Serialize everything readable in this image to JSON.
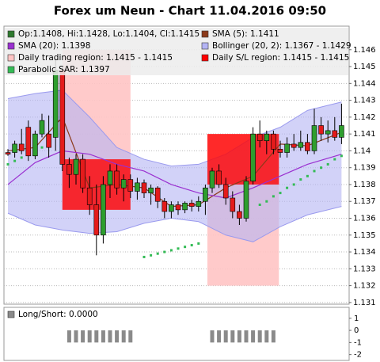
{
  "chart_data": [
    {
      "type": "candlestick",
      "title": "Forex um Neun - Chart 11.04.2016 09:50",
      "ylim": [
        1.1309,
        1.1474
      ],
      "yticks": [
        1.131,
        1.132,
        1.133,
        1.134,
        1.135,
        1.136,
        1.137,
        1.138,
        1.139,
        1.14,
        1.141,
        1.142,
        1.143,
        1.144,
        1.145,
        1.146
      ],
      "grid": true,
      "candles": {
        "name": "Op:1.1408, Hi:1.1428, Lo:1.1404, Cl:1.1415",
        "color": "#2f7a2f",
        "up_color": "#2e9e2e",
        "down_color": "#e41b1b",
        "open": [
          1.1399,
          1.1399,
          1.1404,
          1.1414,
          1.1397,
          1.141,
          1.141,
          1.1408,
          1.1448,
          1.1392,
          1.1386,
          1.1395,
          1.1378,
          1.1368,
          1.135,
          1.138,
          1.1388,
          1.1378,
          1.1383,
          1.1376,
          1.1381,
          1.1375,
          1.1378,
          1.137,
          1.1364,
          1.1368,
          1.1365,
          1.1369,
          1.1367,
          1.137,
          1.1378,
          1.1388,
          1.138,
          1.1372,
          1.1364,
          1.136,
          1.1382,
          1.141,
          1.1406,
          1.141,
          1.1401,
          1.1399,
          1.1404,
          1.1402,
          1.1405,
          1.14,
          1.1415,
          1.141,
          1.1412,
          1.1408
        ],
        "high": [
          1.1401,
          1.1406,
          1.1413,
          1.1418,
          1.1412,
          1.1422,
          1.1421,
          1.1455,
          1.145,
          1.1396,
          1.1398,
          1.1398,
          1.1385,
          1.138,
          1.1385,
          1.1392,
          1.1392,
          1.1386,
          1.1386,
          1.1384,
          1.1383,
          1.138,
          1.1379,
          1.1372,
          1.137,
          1.137,
          1.137,
          1.1371,
          1.1373,
          1.138,
          1.139,
          1.1392,
          1.1384,
          1.1376,
          1.1368,
          1.1385,
          1.1414,
          1.1418,
          1.1412,
          1.1412,
          1.1406,
          1.1408,
          1.141,
          1.1412,
          1.141,
          1.1425,
          1.142,
          1.1418,
          1.142,
          1.1428
        ],
        "low": [
          1.1397,
          1.1396,
          1.1398,
          1.1394,
          1.1395,
          1.1408,
          1.1396,
          1.14,
          1.1388,
          1.1378,
          1.138,
          1.1375,
          1.1362,
          1.1338,
          1.1345,
          1.1372,
          1.1374,
          1.137,
          1.1372,
          1.1371,
          1.1372,
          1.1368,
          1.1366,
          1.136,
          1.136,
          1.1362,
          1.1363,
          1.1364,
          1.1364,
          1.1362,
          1.1375,
          1.1378,
          1.1368,
          1.136,
          1.1356,
          1.1358,
          1.138,
          1.1402,
          1.1398,
          1.1398,
          1.1396,
          1.1396,
          1.14,
          1.14,
          1.1398,
          1.1398,
          1.1406,
          1.1405,
          1.1406,
          1.1404
        ],
        "close": [
          1.1398,
          1.1404,
          1.14,
          1.1397,
          1.141,
          1.1418,
          1.1402,
          1.1448,
          1.1392,
          1.1386,
          1.1395,
          1.1378,
          1.1368,
          1.135,
          1.138,
          1.1388,
          1.1378,
          1.1383,
          1.1376,
          1.1381,
          1.1375,
          1.1378,
          1.137,
          1.1364,
          1.1368,
          1.1365,
          1.1369,
          1.1367,
          1.137,
          1.1378,
          1.1388,
          1.138,
          1.1372,
          1.1364,
          1.136,
          1.1382,
          1.141,
          1.1406,
          1.141,
          1.1401,
          1.1399,
          1.1404,
          1.1402,
          1.1405,
          1.14,
          1.1415,
          1.141,
          1.1412,
          1.1408,
          1.1415
        ]
      },
      "series": [
        {
          "name": "SMA (5): 1.1411",
          "color": "#8b3a1a",
          "style": "line",
          "x": [
            0,
            4,
            8,
            12,
            16,
            20,
            24,
            28,
            32,
            36,
            40,
            44,
            49
          ],
          "values": [
            1.14,
            1.1402,
            1.142,
            1.1378,
            1.138,
            1.1378,
            1.1367,
            1.1368,
            1.1378,
            1.1385,
            1.1404,
            1.1403,
            1.1411
          ]
        },
        {
          "name": "SMA (20): 1.1398",
          "color": "#9a30d0",
          "style": "line",
          "x": [
            0,
            4,
            8,
            12,
            16,
            20,
            24,
            28,
            32,
            36,
            40,
            44,
            49
          ],
          "values": [
            1.138,
            1.1393,
            1.14,
            1.1398,
            1.1392,
            1.1388,
            1.138,
            1.1375,
            1.1372,
            1.1378,
            1.1385,
            1.1392,
            1.1398
          ]
        },
        {
          "name": "Parabolic SAR: 1.1397",
          "color": "#33bb55",
          "style": "dots",
          "x": [
            0,
            1,
            2,
            3,
            4,
            5,
            6,
            20,
            21,
            22,
            23,
            24,
            25,
            26,
            27,
            28,
            37,
            38,
            39,
            40,
            41,
            42,
            43,
            44,
            45,
            46,
            47,
            48,
            49
          ],
          "values": [
            1.1392,
            1.1394,
            1.1396,
            1.1398,
            1.14,
            1.1402,
            1.1404,
            1.1337,
            1.1338,
            1.1339,
            1.134,
            1.1341,
            1.1342,
            1.1343,
            1.1344,
            1.1345,
            1.1368,
            1.137,
            1.1373,
            1.1375,
            1.1378,
            1.138,
            1.1383,
            1.1385,
            1.1388,
            1.139,
            1.1392,
            1.1395,
            1.1397
          ]
        }
      ],
      "bands": {
        "name": "Bollinger (20, 2): 1.1367 - 1.1429",
        "color": "#b4b4f4",
        "x": [
          0,
          4,
          8,
          12,
          16,
          20,
          24,
          28,
          32,
          36,
          40,
          44,
          49
        ],
        "upper": [
          1.1431,
          1.1434,
          1.1436,
          1.142,
          1.1402,
          1.1395,
          1.1391,
          1.1392,
          1.1398,
          1.1408,
          1.1414,
          1.1424,
          1.1429
        ],
        "lower": [
          1.1363,
          1.1356,
          1.1353,
          1.1351,
          1.1352,
          1.1357,
          1.136,
          1.1358,
          1.135,
          1.1346,
          1.1355,
          1.1362,
          1.1367
        ]
      },
      "regions": [
        {
          "name": "Daily trading region: 1.1415 - 1.1415",
          "color": "#ffc4c4",
          "areas": [
            {
              "x": [
                8,
                18
              ],
              "range": [
                1.1365,
                1.146
              ]
            },
            {
              "x": [
                29.3,
                39.8
              ],
              "range": [
                1.132,
                1.141
              ]
            }
          ]
        },
        {
          "name": "Daily S/L region: 1.1415 - 1.1415",
          "color": "#ff0000",
          "areas": [
            {
              "x": [
                8,
                18
              ],
              "range": [
                1.1365,
                1.1395
              ]
            },
            {
              "x": [
                29.3,
                39.8
              ],
              "range": [
                1.138,
                1.141
              ]
            }
          ]
        }
      ]
    },
    {
      "type": "bar",
      "ylim": [
        -2.48,
        1.9
      ],
      "yticks": [
        1,
        0,
        -1,
        -2
      ],
      "series": [
        {
          "name": "Long/Short: 0.0000",
          "color": "#8a8a8a",
          "values": [
            0,
            0,
            0,
            0,
            0,
            0,
            0,
            0,
            0,
            -1,
            -1,
            -1,
            -1,
            -1,
            -1,
            -1,
            -1,
            -1,
            -1,
            0,
            0,
            0,
            0,
            0,
            0,
            0,
            0,
            0,
            0,
            0,
            -1,
            -1,
            -1,
            -1,
            -1,
            -1,
            -1,
            -1,
            -1,
            -1,
            0,
            0,
            0,
            0,
            0,
            0,
            0,
            0,
            0,
            0
          ]
        }
      ]
    }
  ]
}
